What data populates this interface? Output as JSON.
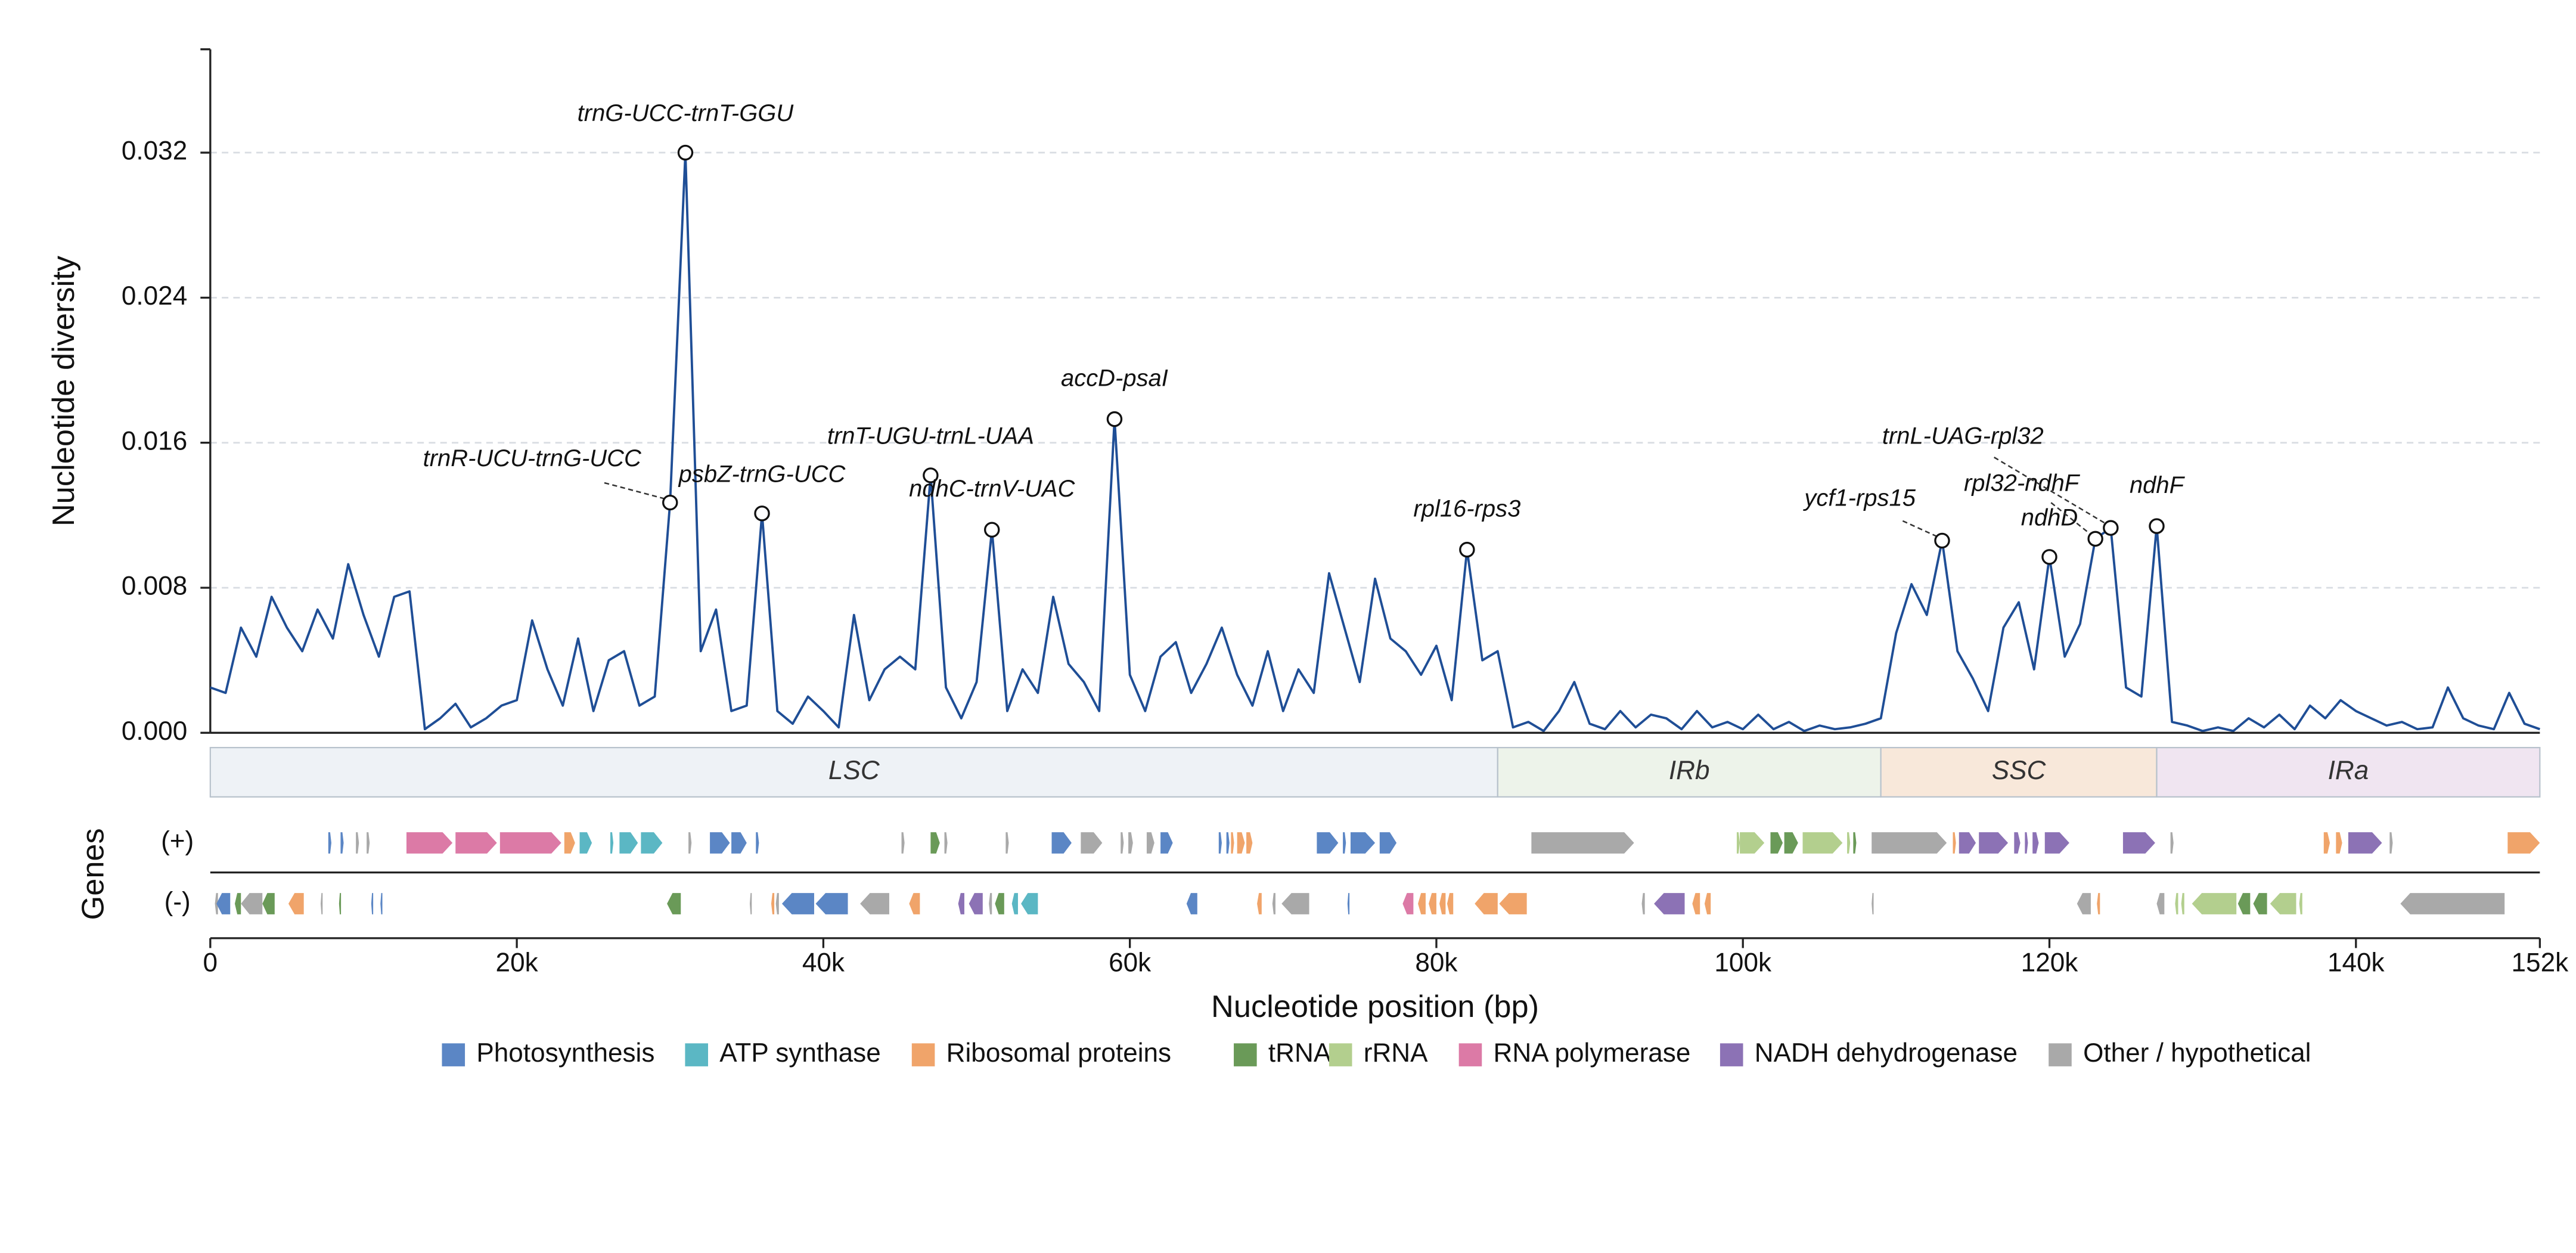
{
  "chart_data": {
    "type": "line",
    "ylabel": "Nucleotide diversity",
    "xlabel": "Nucleotide position (bp)",
    "track_label": "Genes",
    "strand_labels": [
      "(+)",
      "(-)"
    ],
    "color": "#1f4e96",
    "grid": true,
    "xlim": [
      0,
      152000
    ],
    "ylim": [
      0,
      0.0377
    ],
    "xticks": [
      0,
      {
        "value": 20000,
        "label": "20k"
      },
      {
        "value": 40000,
        "label": "40k"
      },
      {
        "value": 60000,
        "label": "60k"
      },
      {
        "value": 80000,
        "label": "80k"
      },
      {
        "value": 100000,
        "label": "100k"
      },
      {
        "value": 120000,
        "label": "120k"
      },
      {
        "value": 140000,
        "label": "140k"
      },
      {
        "value": 152000,
        "label": "152k"
      }
    ],
    "yticks": [
      {
        "value": 0,
        "label": "0.000"
      },
      {
        "value": 0.008,
        "label": "0.008"
      },
      {
        "value": 0.016,
        "label": "0.016"
      },
      {
        "value": 0.024,
        "label": "0.024"
      },
      {
        "value": 0.032,
        "label": "0.032"
      }
    ],
    "x": [
      0,
      1000,
      2000,
      3000,
      4000,
      5000,
      6000,
      7000,
      8000,
      9000,
      10000,
      11000,
      12000,
      13000,
      14000,
      15000,
      16000,
      17000,
      18000,
      19000,
      20000,
      21000,
      22000,
      23000,
      24000,
      25000,
      26000,
      27000,
      28000,
      29000,
      30000,
      31000,
      32000,
      33000,
      34000,
      35000,
      36000,
      37000,
      38000,
      39000,
      40000,
      41000,
      42000,
      43000,
      44000,
      45000,
      46000,
      47000,
      48000,
      49000,
      50000,
      51000,
      52000,
      53000,
      54000,
      55000,
      56000,
      57000,
      58000,
      59000,
      60000,
      61000,
      62000,
      63000,
      64000,
      65000,
      66000,
      67000,
      68000,
      69000,
      70000,
      71000,
      72000,
      73000,
      74000,
      75000,
      76000,
      77000,
      78000,
      79000,
      80000,
      81000,
      82000,
      83000,
      84000,
      85000,
      86000,
      87000,
      88000,
      89000,
      90000,
      91000,
      92000,
      93000,
      94000,
      95000,
      96000,
      97000,
      98000,
      99000,
      100000,
      101000,
      102000,
      103000,
      104000,
      105000,
      106000,
      107000,
      108000,
      109000,
      110000,
      111000,
      112000,
      113000,
      114000,
      115000,
      116000,
      117000,
      118000,
      119000,
      120000,
      121000,
      122000,
      123000,
      124000,
      125000,
      126000,
      127000,
      128000,
      129000,
      130000,
      131000,
      132000,
      133000,
      134000,
      135000,
      136000,
      137000,
      138000,
      139000,
      140000,
      141000,
      142000,
      143000,
      144000,
      145000,
      146000,
      147000,
      148000,
      149000,
      150000,
      151000,
      152000
    ],
    "values": [
      0.0025,
      0.0022,
      0.0058,
      0.0042,
      0.0075,
      0.0058,
      0.0045,
      0.0068,
      0.0052,
      0.0093,
      0.0065,
      0.0042,
      0.0075,
      0.0078,
      0.0002,
      0.0008,
      0.0016,
      0.0003,
      0.0008,
      0.0015,
      0.0018,
      0.0062,
      0.0035,
      0.0015,
      0.0052,
      0.0012,
      0.004,
      0.0045,
      0.0015,
      0.002,
      0.0127,
      0.032,
      0.0045,
      0.0068,
      0.0012,
      0.0015,
      0.0121,
      0.0012,
      0.0005,
      0.002,
      0.0012,
      0.0003,
      0.0065,
      0.0018,
      0.0035,
      0.0042,
      0.0035,
      0.0142,
      0.0025,
      0.0008,
      0.0028,
      0.0112,
      0.0012,
      0.0035,
      0.0022,
      0.0075,
      0.0038,
      0.0028,
      0.0012,
      0.0173,
      0.0032,
      0.0012,
      0.0042,
      0.005,
      0.0022,
      0.0038,
      0.0058,
      0.0032,
      0.0015,
      0.0045,
      0.0012,
      0.0035,
      0.0022,
      0.0088,
      0.0058,
      0.0028,
      0.0085,
      0.0052,
      0.0045,
      0.0032,
      0.0048,
      0.0018,
      0.0101,
      0.004,
      0.0045,
      0.0003,
      0.0006,
      0.0001,
      0.0012,
      0.0028,
      0.0005,
      0.0002,
      0.0012,
      0.0003,
      0.001,
      0.0008,
      0.0002,
      0.0012,
      0.0003,
      0.0006,
      0.0002,
      0.001,
      0.0002,
      0.0006,
      0.0001,
      0.0004,
      0.0002,
      0.0003,
      0.0005,
      0.0008,
      0.0055,
      0.0082,
      0.0065,
      0.0106,
      0.0045,
      0.003,
      0.0012,
      0.0058,
      0.0072,
      0.0035,
      0.0097,
      0.0042,
      0.006,
      0.0107,
      0.0113,
      0.0025,
      0.002,
      0.0114,
      0.0006,
      0.0004,
      0.0001,
      0.0003,
      0.0001,
      0.0008,
      0.0003,
      0.001,
      0.0002,
      0.0015,
      0.0008,
      0.0018,
      0.0012,
      0.0008,
      0.0004,
      0.0006,
      0.0002,
      0.0003,
      0.0025,
      0.0008,
      0.0004,
      0.0002,
      0.0022,
      0.0005,
      0.0002
    ],
    "annotations": [
      {
        "label": "trnR-UCU-trnG-UCC",
        "x": 30000,
        "y": 0.0127
      },
      {
        "label": "trnG-UCC-trnT-GGU",
        "x": 31000,
        "y": 0.032
      },
      {
        "label": "psbZ-trnG-UCC",
        "x": 36000,
        "y": 0.0121
      },
      {
        "label": "trnT-UGU-trnL-UAA",
        "x": 47000,
        "y": 0.0142
      },
      {
        "label": "ndhC-trnV-UAC",
        "x": 51000,
        "y": 0.0112
      },
      {
        "label": "accD-psaI",
        "x": 59000,
        "y": 0.0173
      },
      {
        "label": "rpl16-rps3",
        "x": 82000,
        "y": 0.0101
      },
      {
        "label": "ycf1-rps15",
        "x": 113000,
        "y": 0.0106
      },
      {
        "label": "ndhD",
        "x": 120000,
        "y": 0.0097
      },
      {
        "label": "rpl32-ndhF",
        "x": 123000,
        "y": 0.0107
      },
      {
        "label": "trnL-UAG-rpl32",
        "x": 124000,
        "y": 0.0113
      },
      {
        "label": "ndhF",
        "x": 127000,
        "y": 0.0114
      }
    ],
    "regions": [
      {
        "name": "LSC",
        "start": 0,
        "end": 84000,
        "color": "#eef2f6"
      },
      {
        "name": "IRb",
        "start": 84000,
        "end": 109000,
        "color": "#edf3ea"
      },
      {
        "name": "SSC",
        "start": 109000,
        "end": 127000,
        "color": "#f8e8da"
      },
      {
        "name": "IRa",
        "start": 127000,
        "end": 152000,
        "color": "#f0e5f1"
      }
    ],
    "legend": [
      {
        "name": "Photosynthesis",
        "color": "#5b86c5"
      },
      {
        "name": "ATP synthase",
        "color": "#5bb7c4"
      },
      {
        "name": "Ribosomal proteins",
        "color": "#f0a46a"
      },
      {
        "name": "tRNA",
        "color": "#6a9a58"
      },
      {
        "name": "rRNA",
        "color": "#b3cf8e"
      },
      {
        "name": "RNA polymerase",
        "color": "#dc7aa6"
      },
      {
        "name": "NADH dehydrogenase",
        "color": "#8c72b5"
      },
      {
        "name": "Other / hypothetical",
        "color": "#a9a9a9"
      }
    ],
    "genes": {
      "plus": [
        [
          7700,
          7900,
          0
        ],
        [
          8500,
          8700,
          0
        ],
        [
          9500,
          9700,
          7
        ],
        [
          10200,
          10400,
          7
        ],
        [
          12800,
          15800,
          5
        ],
        [
          16000,
          18700,
          5
        ],
        [
          18900,
          22900,
          5
        ],
        [
          23100,
          23800,
          2
        ],
        [
          24100,
          24900,
          1
        ],
        [
          26100,
          26300,
          1
        ],
        [
          26700,
          27900,
          1
        ],
        [
          28100,
          29500,
          1
        ],
        [
          31200,
          31400,
          7
        ],
        [
          32600,
          33900,
          0
        ],
        [
          34000,
          35000,
          0
        ],
        [
          35600,
          35800,
          0
        ],
        [
          45100,
          45300,
          7
        ],
        [
          47000,
          47600,
          3
        ],
        [
          47900,
          48100,
          7
        ],
        [
          51900,
          52100,
          7
        ],
        [
          54900,
          56200,
          0
        ],
        [
          56800,
          58200,
          7
        ],
        [
          59400,
          59600,
          7
        ],
        [
          59900,
          60200,
          7
        ],
        [
          61100,
          61600,
          7
        ],
        [
          62000,
          62800,
          0
        ],
        [
          65800,
          66000,
          0
        ],
        [
          66300,
          66500,
          0
        ],
        [
          66600,
          66800,
          2
        ],
        [
          67000,
          67500,
          2
        ],
        [
          67600,
          68000,
          2
        ],
        [
          72200,
          73600,
          0
        ],
        [
          73900,
          74100,
          0
        ],
        [
          74400,
          76000,
          0
        ],
        [
          76300,
          77400,
          0
        ],
        [
          86200,
          92900,
          7
        ],
        [
          99600,
          99800,
          4
        ],
        [
          99800,
          101400,
          4
        ],
        [
          101800,
          102600,
          3
        ],
        [
          102700,
          103600,
          3
        ],
        [
          103900,
          106500,
          4
        ],
        [
          106800,
          107000,
          4
        ],
        [
          107200,
          107400,
          3
        ],
        [
          108400,
          113300,
          7
        ],
        [
          113700,
          113900,
          2
        ],
        [
          114100,
          115200,
          6
        ],
        [
          115400,
          117300,
          6
        ],
        [
          117700,
          118100,
          6
        ],
        [
          118400,
          118600,
          6
        ],
        [
          118900,
          119300,
          6
        ],
        [
          119700,
          121300,
          6
        ],
        [
          124800,
          126900,
          6
        ],
        [
          127900,
          128100,
          7
        ],
        [
          137900,
          138300,
          2
        ],
        [
          138700,
          139100,
          2
        ],
        [
          139500,
          141700,
          6
        ],
        [
          142200,
          142400,
          7
        ],
        [
          149900,
          152000,
          2
        ]
      ],
      "minus": [
        [
          300,
          500,
          7
        ],
        [
          400,
          1300,
          0
        ],
        [
          1600,
          2000,
          3
        ],
        [
          2000,
          3400,
          7
        ],
        [
          3400,
          4200,
          3
        ],
        [
          5100,
          6100,
          2
        ],
        [
          7200,
          7300,
          7
        ],
        [
          8400,
          8500,
          3
        ],
        [
          10500,
          10600,
          0
        ],
        [
          11100,
          11200,
          0
        ],
        [
          29800,
          30700,
          3
        ],
        [
          35200,
          35300,
          7
        ],
        [
          36600,
          36800,
          2
        ],
        [
          36900,
          37100,
          7
        ],
        [
          37300,
          39400,
          0
        ],
        [
          39500,
          41600,
          0
        ],
        [
          42400,
          44300,
          7
        ],
        [
          45600,
          46300,
          2
        ],
        [
          48800,
          49200,
          6
        ],
        [
          49500,
          50400,
          6
        ],
        [
          50800,
          51000,
          7
        ],
        [
          51200,
          51800,
          3
        ],
        [
          52300,
          52700,
          1
        ],
        [
          52900,
          54000,
          1
        ],
        [
          63700,
          64400,
          0
        ],
        [
          68300,
          68600,
          2
        ],
        [
          69300,
          69500,
          7
        ],
        [
          69900,
          71700,
          7
        ],
        [
          74200,
          74300,
          0
        ],
        [
          77800,
          78500,
          5
        ],
        [
          78800,
          79300,
          2
        ],
        [
          79500,
          80000,
          2
        ],
        [
          80200,
          80600,
          2
        ],
        [
          80700,
          81100,
          2
        ],
        [
          82500,
          84000,
          2
        ],
        [
          84100,
          85900,
          2
        ],
        [
          93400,
          93600,
          7
        ],
        [
          94200,
          96200,
          6
        ],
        [
          96700,
          97200,
          2
        ],
        [
          97500,
          97900,
          2
        ],
        [
          108400,
          108500,
          7
        ],
        [
          121800,
          122700,
          7
        ],
        [
          123100,
          123300,
          2
        ],
        [
          127000,
          127500,
          7
        ],
        [
          128200,
          128400,
          4
        ],
        [
          128600,
          128800,
          4
        ],
        [
          129300,
          132200,
          4
        ],
        [
          132300,
          133100,
          3
        ],
        [
          133300,
          134200,
          3
        ],
        [
          134400,
          136100,
          4
        ],
        [
          136300,
          136500,
          4
        ],
        [
          142900,
          149700,
          7
        ]
      ]
    }
  }
}
